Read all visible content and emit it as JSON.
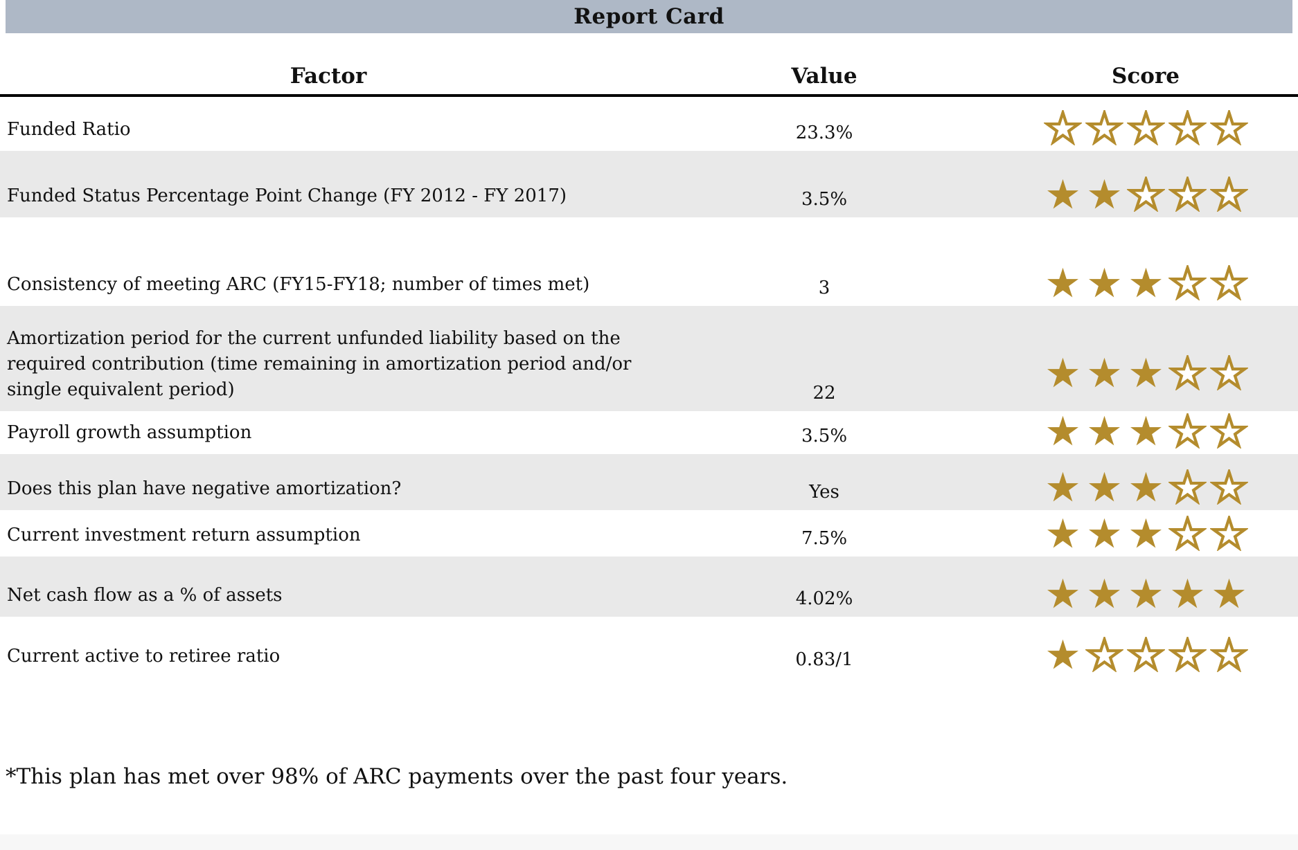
{
  "title": "Report Card",
  "columns": {
    "factor": "Factor",
    "value": "Value",
    "score": "Score"
  },
  "score_scale": 5,
  "colors": {
    "banner": "#aeb8c6",
    "row_alt": "#e9e9e9",
    "star": "#b48c2d"
  },
  "rows": [
    {
      "factor": "Funded Ratio",
      "value": "23.3%",
      "score": 0
    },
    {
      "factor": "Funded Status Percentage Point Change (FY 2012 - FY 2017)",
      "value": "3.5%",
      "score": 2
    },
    {
      "factor": "Consistency of meeting ARC (FY15-FY18; number of times met)",
      "value": "3",
      "score": 3
    },
    {
      "factor": "Amortization period for the current unfunded liability based on the required contribution (time remaining in amortization period and/or single equivalent period)",
      "value": "22",
      "score": 3
    },
    {
      "factor": "Payroll growth assumption",
      "value": "3.5%",
      "score": 3
    },
    {
      "factor": "Does this plan have negative amortization?",
      "value": "Yes",
      "score": 3
    },
    {
      "factor": "Current investment return assumption",
      "value": "7.5%",
      "score": 3
    },
    {
      "factor": "Net cash flow as a % of assets",
      "value": "4.02%",
      "score": 5
    },
    {
      "factor": "Current active to retiree ratio",
      "value": "0.83/1",
      "score": 1
    }
  ],
  "footnote": "*This plan has met over 98% of ARC payments over the past four years."
}
